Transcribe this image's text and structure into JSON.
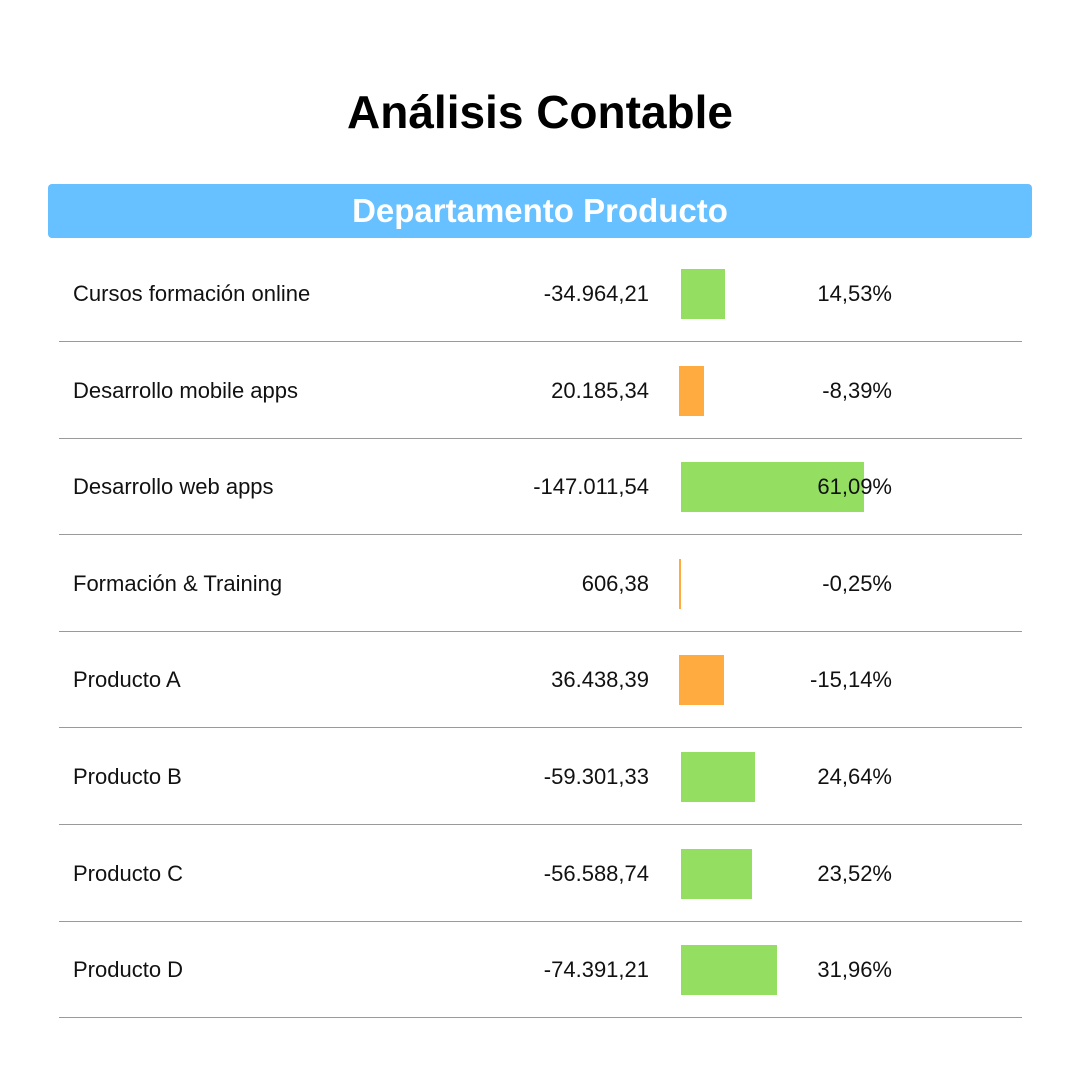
{
  "title": "Análisis Contable",
  "section": "Departamento Producto",
  "colors": {
    "header": "#67c0ff",
    "positive_bar": "#94de62",
    "negative_bar": "#ffab40",
    "divider": "#9a9a9a"
  },
  "chart_data": {
    "type": "bar",
    "title": "Análisis Contable",
    "subtitle": "Departamento Producto",
    "categories": [
      "Cursos formación online",
      "Desarrollo mobile apps",
      "Desarrollo web apps",
      "Formación & Training",
      "Producto A",
      "Producto B",
      "Producto C",
      "Producto D"
    ],
    "amounts": [
      "-34.964,21",
      "20.185,34",
      "-147.011,54",
      "606,38",
      "36.438,39",
      "-59.301,33",
      "-56.588,74",
      "-74.391,21"
    ],
    "percent_labels": [
      "14,53%",
      "-8,39%",
      "61,09%",
      "-0,25%",
      "-15,14%",
      "24,64%",
      "23,52%",
      "31,96%"
    ],
    "values": [
      14.53,
      -8.39,
      61.09,
      -0.25,
      -15.14,
      24.64,
      23.52,
      31.96
    ]
  }
}
